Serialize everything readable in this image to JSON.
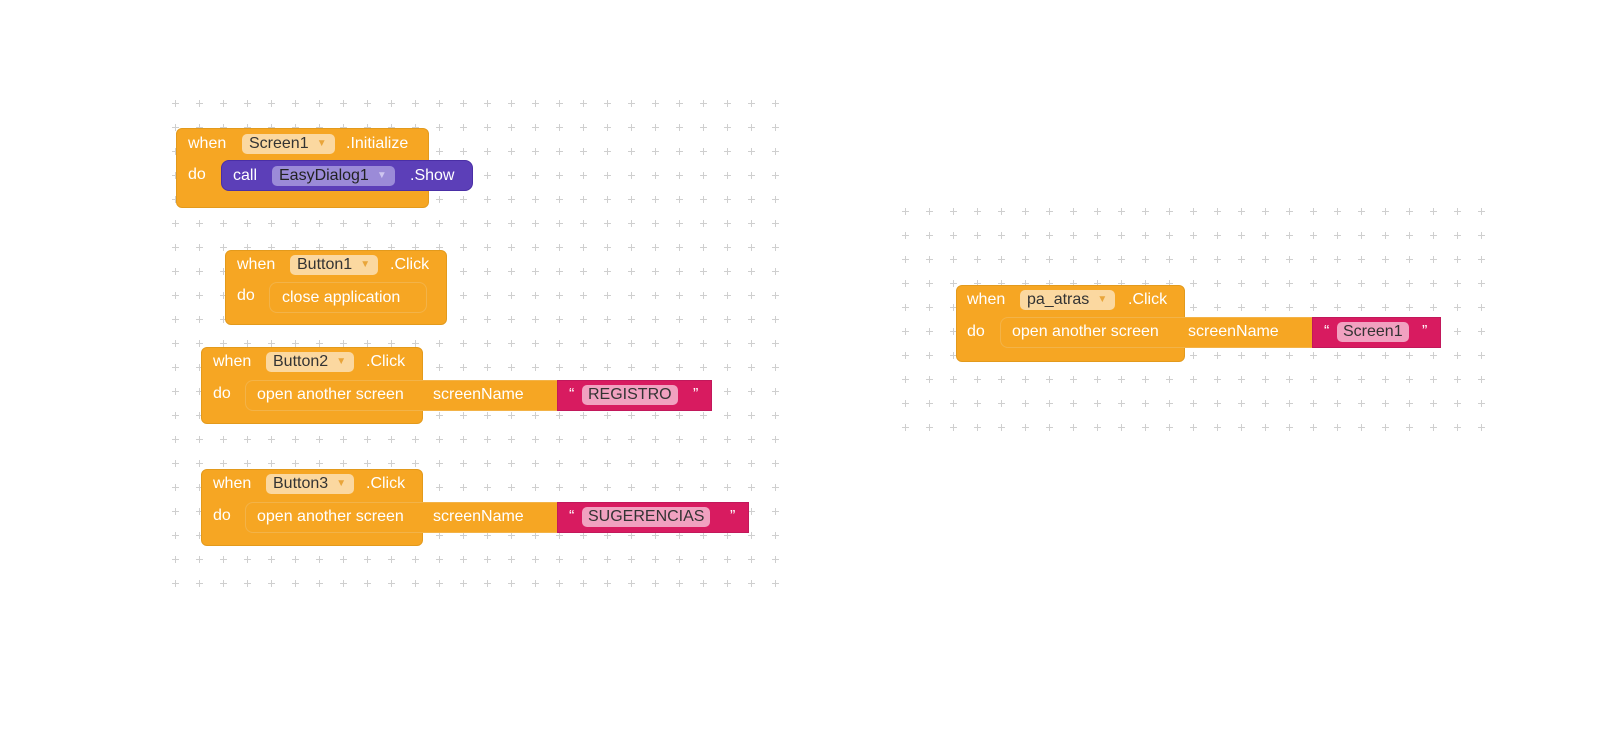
{
  "blocks": {
    "screen1_init": {
      "when": "when",
      "component": "Screen1",
      "event": ".Initialize",
      "do": "do",
      "call": "call",
      "call_component": "EasyDialog1",
      "call_method": ".Show"
    },
    "button1_click": {
      "when": "when",
      "component": "Button1",
      "event": ".Click",
      "do": "do",
      "action": "close application"
    },
    "button2_click": {
      "when": "when",
      "component": "Button2",
      "event": ".Click",
      "do": "do",
      "action": "open another screen",
      "param": "screenName",
      "value": "REGISTRO"
    },
    "button3_click": {
      "when": "when",
      "component": "Button3",
      "event": ".Click",
      "do": "do",
      "action": "open another screen",
      "param": "screenName",
      "value": "SUGERENCIAS"
    },
    "pa_atras_click": {
      "when": "when",
      "component": "pa_atras",
      "event": ".Click",
      "do": "do",
      "action": "open another screen",
      "param": "screenName",
      "value": "Screen1"
    }
  },
  "quotes": {
    "open": "“",
    "close": "”"
  },
  "icons": {
    "dropdown": "dropdown-caret-icon"
  },
  "colors": {
    "event": "#F6A623",
    "string": "#D81B60",
    "component_call": "#5C3FB8"
  }
}
